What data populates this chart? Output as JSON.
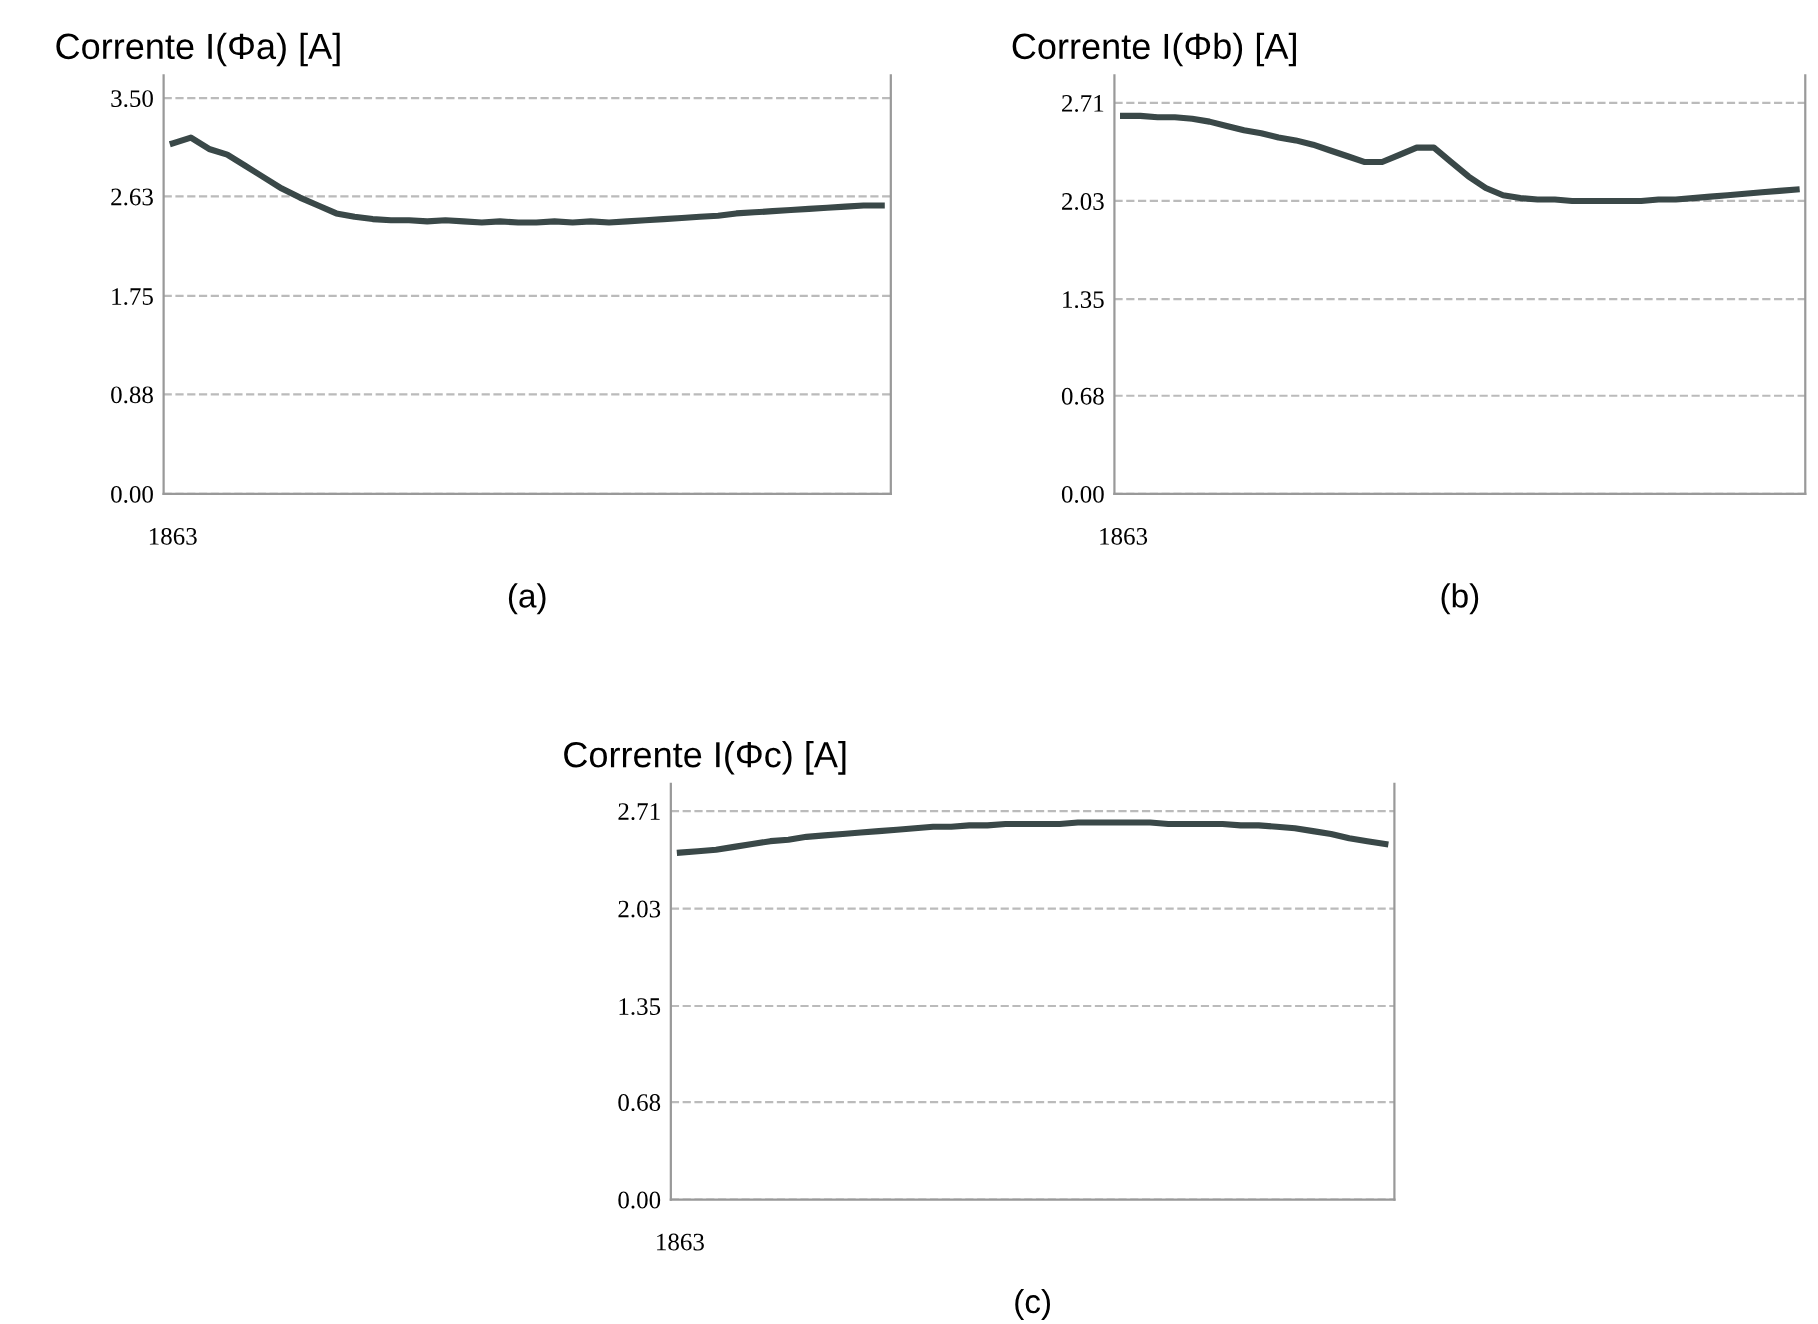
{
  "chart_data": [
    {
      "type": "line",
      "title": "Corrente I(Φa) [A]",
      "xlabel": "(a)",
      "categories": [
        "1863",
        null,
        null,
        null,
        null,
        null,
        null,
        null,
        null,
        null,
        null,
        null,
        null,
        null,
        null,
        null,
        null,
        null,
        null,
        null,
        null,
        null,
        null,
        null,
        null,
        null,
        null,
        null,
        null,
        null,
        null,
        null,
        null,
        null,
        null,
        null,
        null,
        null,
        null,
        null
      ],
      "series": [
        {
          "color": "#3a4848",
          "values": [
            3.1,
            3.15,
            3.05,
            3.0,
            2.9,
            2.8,
            2.7,
            2.62,
            2.55,
            2.48,
            2.45,
            2.43,
            2.42,
            2.42,
            2.41,
            2.42,
            2.41,
            2.4,
            2.41,
            2.4,
            2.4,
            2.41,
            2.4,
            2.41,
            2.4,
            2.41,
            2.42,
            2.43,
            2.44,
            2.45,
            2.46,
            2.48,
            2.49,
            2.5,
            2.51,
            2.52,
            2.53,
            2.54,
            2.55,
            2.55
          ]
        }
      ],
      "ylim": [
        0,
        3.7
      ],
      "yticks": [
        {
          "value": 0,
          "label": "0.00"
        },
        {
          "value": 0.88,
          "label": "0.88"
        },
        {
          "value": 1.75,
          "label": "1.75"
        },
        {
          "value": 2.63,
          "label": "2.63"
        },
        {
          "value": 3.5,
          "label": "3.50"
        }
      ],
      "grid": "y",
      "marker": "none",
      "line_style": "solid"
    },
    {
      "type": "line",
      "title": "Corrente I(Φb) [A]",
      "xlabel": "(b)",
      "categories": [
        "1863",
        null,
        null,
        null,
        null,
        null,
        null,
        null,
        null,
        null,
        null,
        null,
        null,
        null,
        null,
        null,
        null,
        null,
        null,
        null,
        null,
        null,
        null,
        null,
        null,
        null,
        null,
        null,
        null,
        null,
        null,
        null,
        null,
        null,
        null,
        null,
        null,
        null,
        null,
        null
      ],
      "series": [
        {
          "color": "#3a4848",
          "values": [
            2.62,
            2.62,
            2.61,
            2.61,
            2.6,
            2.58,
            2.55,
            2.52,
            2.5,
            2.47,
            2.45,
            2.42,
            2.38,
            2.34,
            2.3,
            2.3,
            2.35,
            2.4,
            2.4,
            2.3,
            2.2,
            2.12,
            2.07,
            2.05,
            2.04,
            2.04,
            2.03,
            2.03,
            2.03,
            2.03,
            2.03,
            2.04,
            2.04,
            2.05,
            2.06,
            2.07,
            2.08,
            2.09,
            2.1,
            2.11
          ]
        }
      ],
      "ylim": [
        0,
        2.9
      ],
      "yticks": [
        {
          "value": 0,
          "label": "0.00"
        },
        {
          "value": 0.68,
          "label": "0.68"
        },
        {
          "value": 1.35,
          "label": "1.35"
        },
        {
          "value": 2.03,
          "label": "2.03"
        },
        {
          "value": 2.71,
          "label": "2.71"
        }
      ],
      "grid": "y",
      "marker": "none",
      "line_style": "solid"
    },
    {
      "type": "line",
      "title": "Corrente I(Φc) [A]",
      "xlabel": "(c)",
      "categories": [
        "1863",
        null,
        null,
        null,
        null,
        null,
        null,
        null,
        null,
        null,
        null,
        null,
        null,
        null,
        null,
        null,
        null,
        null,
        null,
        null,
        null,
        null,
        null,
        null,
        null,
        null,
        null,
        null,
        null,
        null,
        null,
        null,
        null,
        null,
        null,
        null,
        null,
        null,
        null,
        null
      ],
      "series": [
        {
          "color": "#3a4848",
          "values": [
            2.42,
            2.43,
            2.44,
            2.46,
            2.48,
            2.5,
            2.51,
            2.53,
            2.54,
            2.55,
            2.56,
            2.57,
            2.58,
            2.59,
            2.6,
            2.6,
            2.61,
            2.61,
            2.62,
            2.62,
            2.62,
            2.62,
            2.63,
            2.63,
            2.63,
            2.63,
            2.63,
            2.62,
            2.62,
            2.62,
            2.62,
            2.61,
            2.61,
            2.6,
            2.59,
            2.57,
            2.55,
            2.52,
            2.5,
            2.48
          ]
        }
      ],
      "ylim": [
        0,
        2.9
      ],
      "yticks": [
        {
          "value": 0,
          "label": "0.00"
        },
        {
          "value": 0.68,
          "label": "0.68"
        },
        {
          "value": 1.35,
          "label": "1.35"
        },
        {
          "value": 2.03,
          "label": "2.03"
        },
        {
          "value": 2.71,
          "label": "2.71"
        }
      ],
      "grid": "y",
      "marker": "none",
      "line_style": "solid"
    }
  ]
}
